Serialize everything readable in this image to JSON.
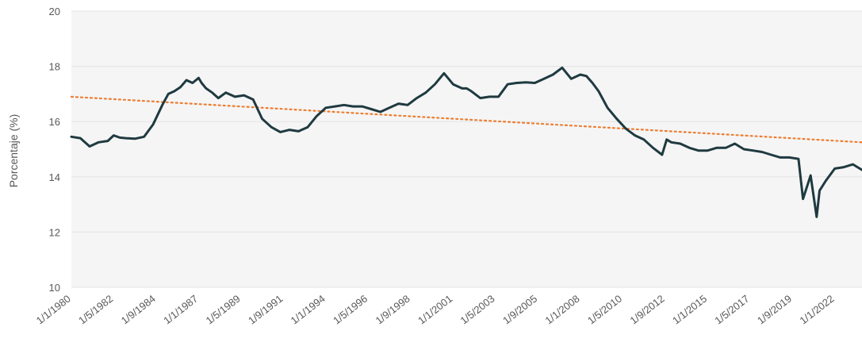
{
  "chart_data": {
    "type": "line",
    "title": "",
    "xlabel": "",
    "ylabel": "Porcentaje (%)",
    "ylim": [
      10,
      20
    ],
    "xlim": [
      "1980-01-01",
      "2023-07-01"
    ],
    "yticks": [
      10,
      12,
      14,
      16,
      18,
      20
    ],
    "xtick_labels": [
      "1/1/1980",
      "1/5/1982",
      "1/9/1984",
      "1/1/1987",
      "1/5/1989",
      "1/9/1991",
      "1/1/1994",
      "1/5/1996",
      "1/9/1998",
      "1/1/2001",
      "1/5/2003",
      "1/9/2005",
      "1/1/2008",
      "1/5/2010",
      "1/9/2012",
      "1/1/2015",
      "1/5/2017",
      "1/9/2019",
      "1/1/2022"
    ],
    "xtick_dates": [
      "1980-01-01",
      "1982-05-01",
      "1984-09-01",
      "1987-01-01",
      "1989-05-01",
      "1991-09-01",
      "1994-01-01",
      "1996-05-01",
      "1998-09-01",
      "2001-01-01",
      "2003-05-01",
      "2005-09-01",
      "2008-01-01",
      "2010-05-01",
      "2012-09-01",
      "2015-01-01",
      "2017-05-01",
      "2019-09-01",
      "2022-01-01"
    ],
    "grid": true,
    "legend": "none",
    "colors": {
      "series": "#1f3a40",
      "trend": "#ed7d31",
      "plot_bg": "#f5f5f5",
      "grid": "#e3e3e3"
    },
    "series": [
      {
        "style": "solid",
        "x": [
          "1980-01-01",
          "1980-07-01",
          "1981-01-01",
          "1981-07-01",
          "1982-01-01",
          "1982-05-01",
          "1982-09-01",
          "1983-01-01",
          "1983-07-01",
          "1984-01-01",
          "1984-07-01",
          "1985-01-01",
          "1985-05-01",
          "1985-09-01",
          "1986-01-01",
          "1986-05-01",
          "1986-09-01",
          "1987-01-01",
          "1987-03-01",
          "1987-06-01",
          "1987-10-01",
          "1988-02-01",
          "1988-07-01",
          "1989-01-01",
          "1989-07-01",
          "1990-01-01",
          "1990-07-01",
          "1991-01-01",
          "1991-07-01",
          "1992-01-01",
          "1992-07-01",
          "1993-01-01",
          "1993-07-01",
          "1994-01-01",
          "1994-07-01",
          "1995-01-01",
          "1995-07-01",
          "1996-01-01",
          "1996-07-01",
          "1997-01-01",
          "1997-07-01",
          "1998-01-01",
          "1998-07-01",
          "1999-01-01",
          "1999-07-01",
          "2000-01-01",
          "2000-07-01",
          "2001-01-01",
          "2001-07-01",
          "2001-10-01",
          "2002-01-01",
          "2002-07-01",
          "2003-01-01",
          "2003-07-01",
          "2004-01-01",
          "2004-07-01",
          "2005-01-01",
          "2005-07-01",
          "2006-01-01",
          "2006-07-01",
          "2007-01-01",
          "2007-07-01",
          "2008-01-01",
          "2008-05-01",
          "2008-09-01",
          "2009-01-01",
          "2009-07-01",
          "2010-01-01",
          "2010-07-01",
          "2011-01-01",
          "2011-07-01",
          "2012-01-01",
          "2012-07-01",
          "2012-10-01",
          "2013-01-01",
          "2013-07-01",
          "2014-01-01",
          "2014-07-01",
          "2015-01-01",
          "2015-07-01",
          "2016-01-01",
          "2016-07-01",
          "2017-01-01",
          "2017-07-01",
          "2018-01-01",
          "2018-07-01",
          "2019-01-01",
          "2019-07-01",
          "2020-01-01",
          "2020-04-01",
          "2020-09-01",
          "2021-01-01",
          "2021-03-01",
          "2021-07-01",
          "2022-01-01",
          "2022-07-01",
          "2023-01-01",
          "2023-07-01"
        ],
        "y": [
          15.45,
          15.4,
          15.1,
          15.25,
          15.3,
          15.5,
          15.42,
          15.4,
          15.38,
          15.45,
          15.9,
          16.6,
          17.0,
          17.1,
          17.25,
          17.5,
          17.4,
          17.58,
          17.4,
          17.2,
          17.05,
          16.85,
          17.05,
          16.9,
          16.95,
          16.8,
          16.1,
          15.8,
          15.62,
          15.7,
          15.65,
          15.8,
          16.2,
          16.5,
          16.55,
          16.6,
          16.55,
          16.55,
          16.45,
          16.35,
          16.5,
          16.65,
          16.6,
          16.85,
          17.05,
          17.35,
          17.75,
          17.35,
          17.2,
          17.2,
          17.1,
          16.85,
          16.9,
          16.9,
          17.35,
          17.4,
          17.42,
          17.4,
          17.55,
          17.7,
          17.95,
          17.55,
          17.7,
          17.65,
          17.4,
          17.1,
          16.5,
          16.1,
          15.75,
          15.5,
          15.35,
          15.05,
          14.8,
          15.35,
          15.25,
          15.2,
          15.05,
          14.95,
          14.95,
          15.05,
          15.05,
          15.2,
          15.0,
          14.95,
          14.9,
          14.8,
          14.7,
          14.7,
          14.65,
          13.2,
          14.05,
          12.55,
          13.5,
          13.85,
          14.3,
          14.35,
          14.45,
          14.25
        ]
      },
      {
        "style": "dotted",
        "x": [
          "1980-01-01",
          "2023-07-01"
        ],
        "y": [
          16.9,
          15.25
        ]
      }
    ]
  }
}
